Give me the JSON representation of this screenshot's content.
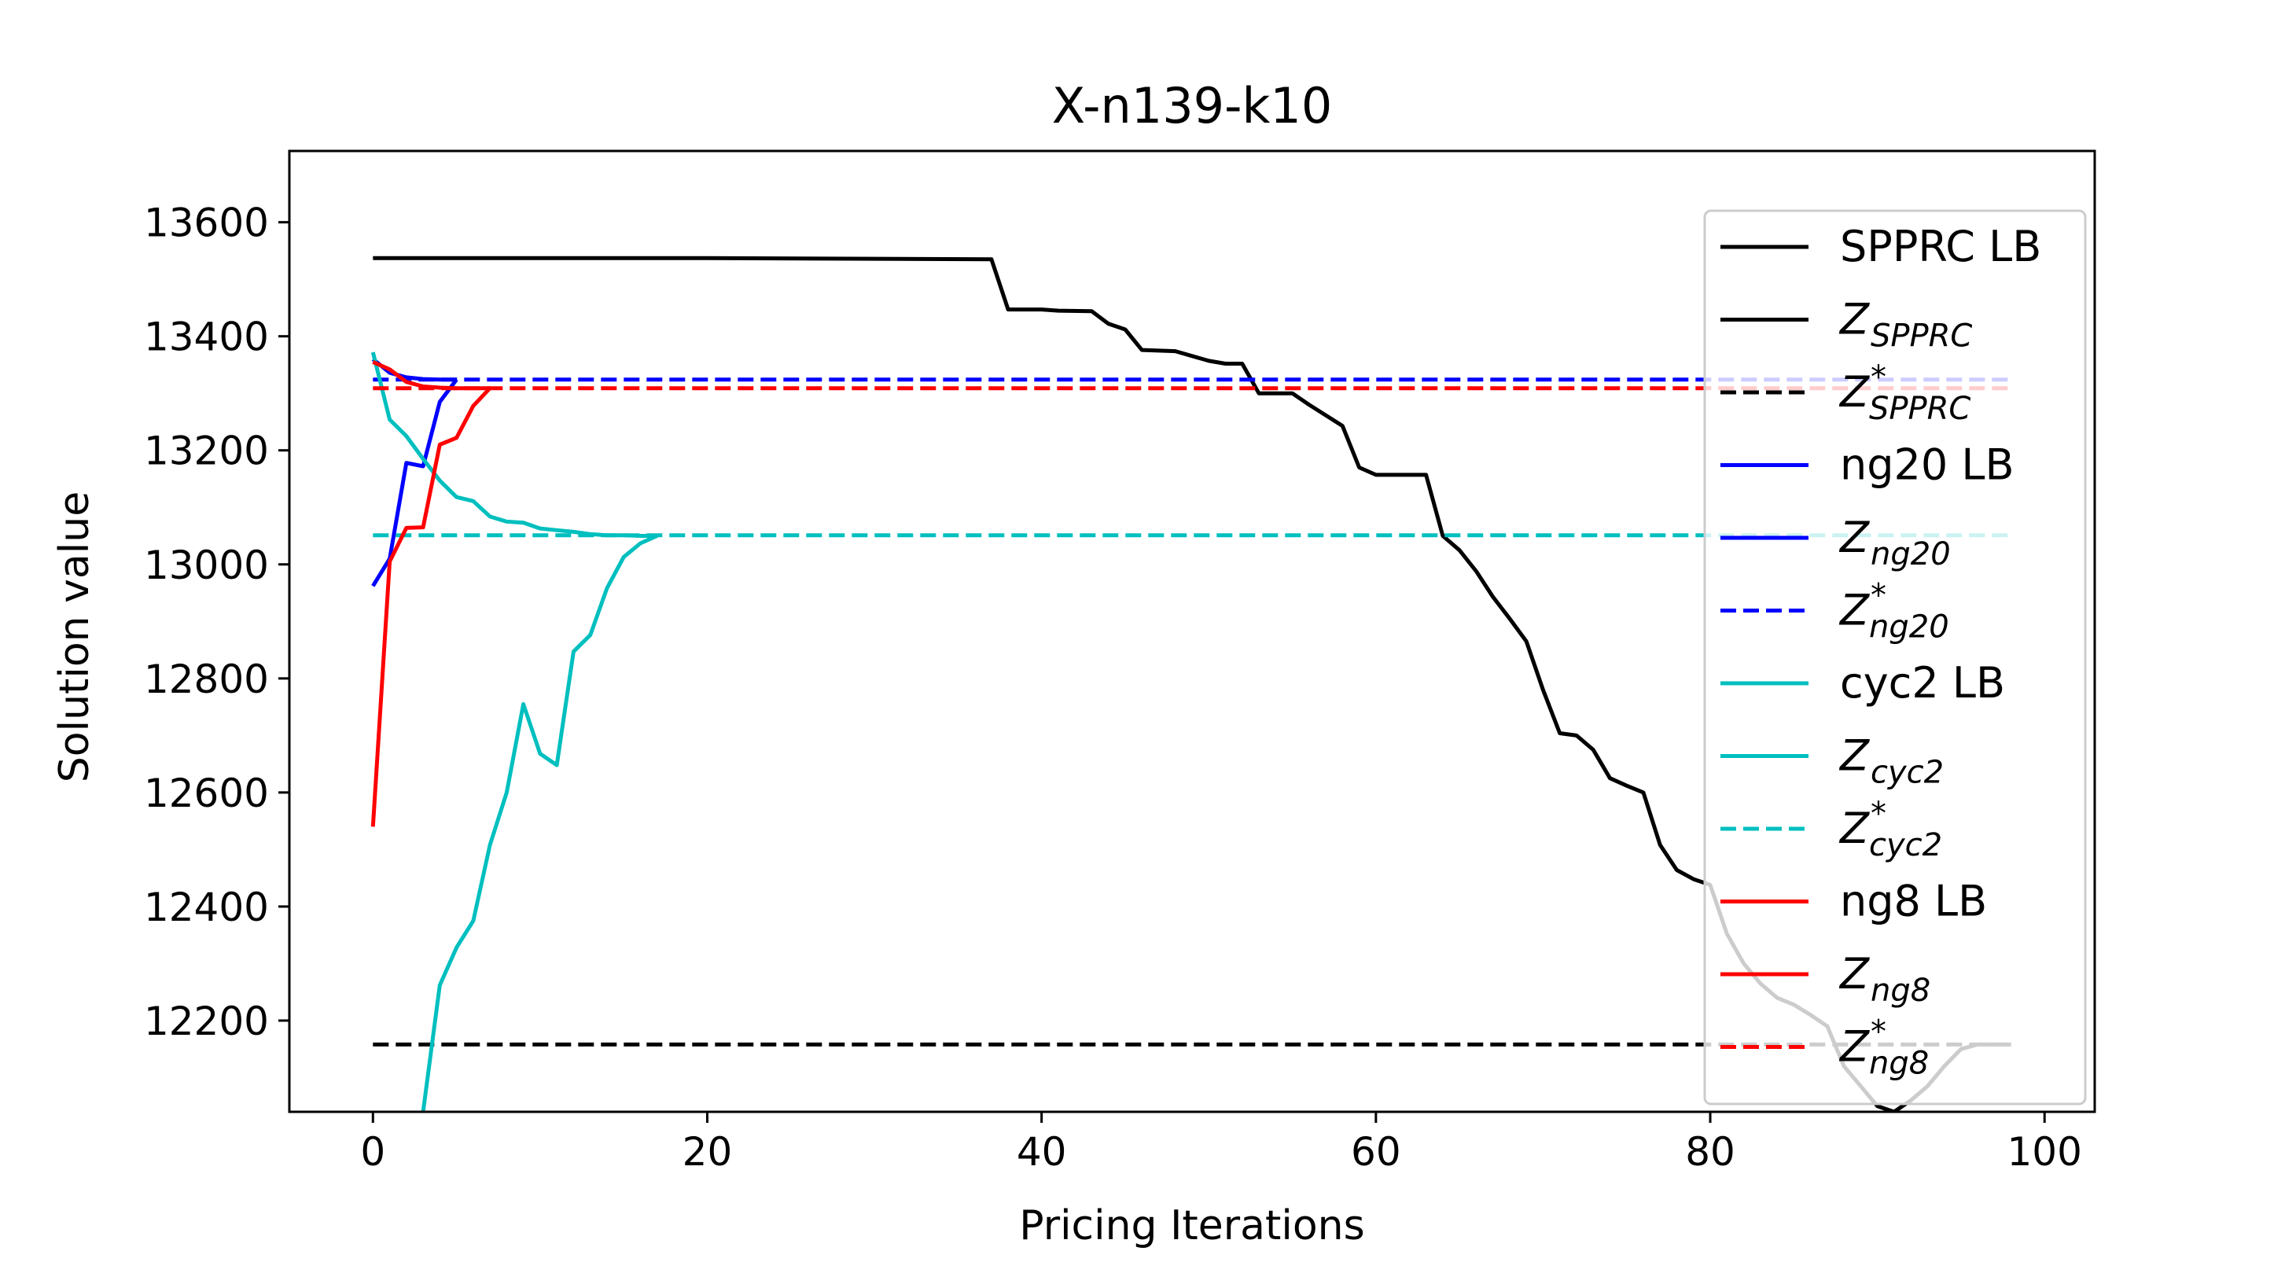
{
  "chart_data": {
    "type": "line",
    "title": "X-n139-k10",
    "xlabel": "Pricing Iterations",
    "ylabel": "Solution value",
    "xlim": [
      -5,
      103
    ],
    "ylim": [
      12040,
      13725
    ],
    "xticks": [
      0,
      20,
      40,
      60,
      80,
      100
    ],
    "yticks": [
      12200,
      12400,
      12600,
      12800,
      13000,
      13200,
      13400,
      13600
    ],
    "grid": false,
    "legend_position": "right",
    "series": [
      {
        "name": "SPPRC LB",
        "color": "#000000",
        "style": "solid",
        "x": [
          0,
          10,
          20,
          30,
          37,
          38,
          40,
          41,
          43,
          44,
          45,
          46,
          48,
          50,
          51,
          52,
          53,
          55,
          56,
          58,
          59,
          60,
          61,
          62,
          63,
          64,
          65,
          66,
          67,
          68,
          69,
          70,
          71,
          72,
          73,
          74,
          75,
          76,
          77,
          78,
          79,
          80,
          81,
          82,
          83,
          84,
          85,
          86,
          87,
          88,
          89,
          90,
          91,
          92,
          93,
          94,
          95,
          96,
          97,
          98
        ],
        "values": [
          13537,
          13537,
          13537,
          13536,
          13535,
          13447,
          13447,
          13445,
          13444,
          13422,
          13412,
          13376,
          13374,
          13357,
          13352,
          13352,
          13300,
          13300,
          13280,
          13243,
          13170,
          13157,
          13157,
          13157,
          13157,
          13050,
          13025,
          12988,
          12943,
          12905,
          12865,
          12780,
          12704,
          12700,
          12675,
          12625,
          12612,
          12600,
          12508,
          12464,
          12448,
          12438,
          12352,
          12300,
          12265,
          12240,
          12228,
          12210,
          12190,
          12120,
          12085,
          12050,
          12040,
          12060,
          12085,
          12120,
          12150,
          12158,
          12158,
          12158
        ]
      },
      {
        "name": "Z*SPPRC",
        "color": "#000000",
        "style": "dashed",
        "x": [
          0,
          98
        ],
        "values": [
          12158,
          12158
        ]
      },
      {
        "name": "ng20 LB",
        "color": "#0000ff",
        "style": "solid",
        "x": [
          0,
          1,
          2,
          3,
          4,
          5
        ],
        "values": [
          12962,
          13010,
          13178,
          13172,
          13285,
          13324
        ]
      },
      {
        "name": "Zng20",
        "color": "#0000ff",
        "style": "solid",
        "x": [
          0,
          1,
          2,
          3,
          4,
          5
        ],
        "values": [
          13360,
          13336,
          13328,
          13325,
          13324,
          13324
        ]
      },
      {
        "name": "Z*ng20",
        "color": "#0000ff",
        "style": "dashed",
        "x": [
          0,
          98
        ],
        "values": [
          13324,
          13324
        ]
      },
      {
        "name": "cyc2 LB",
        "color": "#00bfbf",
        "style": "solid",
        "x": [
          3,
          4,
          5,
          6,
          7,
          8,
          9,
          10,
          11,
          12,
          13,
          14,
          15,
          16,
          17
        ],
        "values": [
          12040,
          12262,
          12328,
          12375,
          12508,
          12600,
          12755,
          12668,
          12648,
          12847,
          12876,
          12958,
          13013,
          13037,
          13050
        ]
      },
      {
        "name": "Zcyc2",
        "color": "#00bfbf",
        "style": "solid",
        "x": [
          0,
          1,
          2,
          3,
          4,
          5,
          6,
          7,
          8,
          9,
          10,
          11,
          12,
          13,
          14,
          15,
          16,
          17
        ],
        "values": [
          13372,
          13254,
          13225,
          13185,
          13147,
          13118,
          13111,
          13084,
          13075,
          13073,
          13063,
          13060,
          13057,
          13053,
          13051,
          13051,
          13050,
          13050
        ]
      },
      {
        "name": "Z*cyc2",
        "color": "#00bfbf",
        "style": "dashed",
        "x": [
          0,
          98
        ],
        "values": [
          13051,
          13051
        ]
      },
      {
        "name": "ng8 LB",
        "color": "#ff0000",
        "style": "solid",
        "x": [
          0,
          1,
          2,
          3,
          4,
          5,
          6,
          7
        ],
        "values": [
          12540,
          13005,
          13064,
          13065,
          13210,
          13222,
          13278,
          13309
        ]
      },
      {
        "name": "Zng8",
        "color": "#ff0000",
        "style": "solid",
        "x": [
          0,
          1,
          2,
          3,
          4,
          5,
          6,
          7
        ],
        "values": [
          13355,
          13342,
          13320,
          13312,
          13310,
          13309,
          13309,
          13309
        ]
      },
      {
        "name": "Z*ng8",
        "color": "#ff0000",
        "style": "dashed",
        "x": [
          0,
          98
        ],
        "values": [
          13309,
          13309
        ]
      }
    ],
    "legend": [
      {
        "main": "SPPRC LB",
        "sub": "",
        "sup": "",
        "italic": false,
        "color": "#000000",
        "style": "solid"
      },
      {
        "main": "Z",
        "sub": "SPPRC",
        "sup": "",
        "italic": true,
        "color": "#000000",
        "style": "solid"
      },
      {
        "main": "Z",
        "sub": "SPPRC",
        "sup": "*",
        "italic": true,
        "color": "#000000",
        "style": "dashed"
      },
      {
        "main": "ng20 LB",
        "sub": "",
        "sup": "",
        "italic": false,
        "color": "#0000ff",
        "style": "solid"
      },
      {
        "main": "Z",
        "sub": "ng20",
        "sup": "",
        "italic": true,
        "color": "#0000ff",
        "style": "solid"
      },
      {
        "main": "Z",
        "sub": "ng20",
        "sup": "*",
        "italic": true,
        "color": "#0000ff",
        "style": "dashed"
      },
      {
        "main": "cyc2 LB",
        "sub": "",
        "sup": "",
        "italic": false,
        "color": "#00bfbf",
        "style": "solid"
      },
      {
        "main": "Z",
        "sub": "cyc2",
        "sup": "",
        "italic": true,
        "color": "#00bfbf",
        "style": "solid"
      },
      {
        "main": "Z",
        "sub": "cyc2",
        "sup": "*",
        "italic": true,
        "color": "#00bfbf",
        "style": "dashed"
      },
      {
        "main": "ng8 LB",
        "sub": "",
        "sup": "",
        "italic": false,
        "color": "#ff0000",
        "style": "solid"
      },
      {
        "main": "Z",
        "sub": "ng8",
        "sup": "",
        "italic": true,
        "color": "#ff0000",
        "style": "solid"
      },
      {
        "main": "Z",
        "sub": "ng8",
        "sup": "*",
        "italic": true,
        "color": "#ff0000",
        "style": "dashed"
      }
    ]
  }
}
